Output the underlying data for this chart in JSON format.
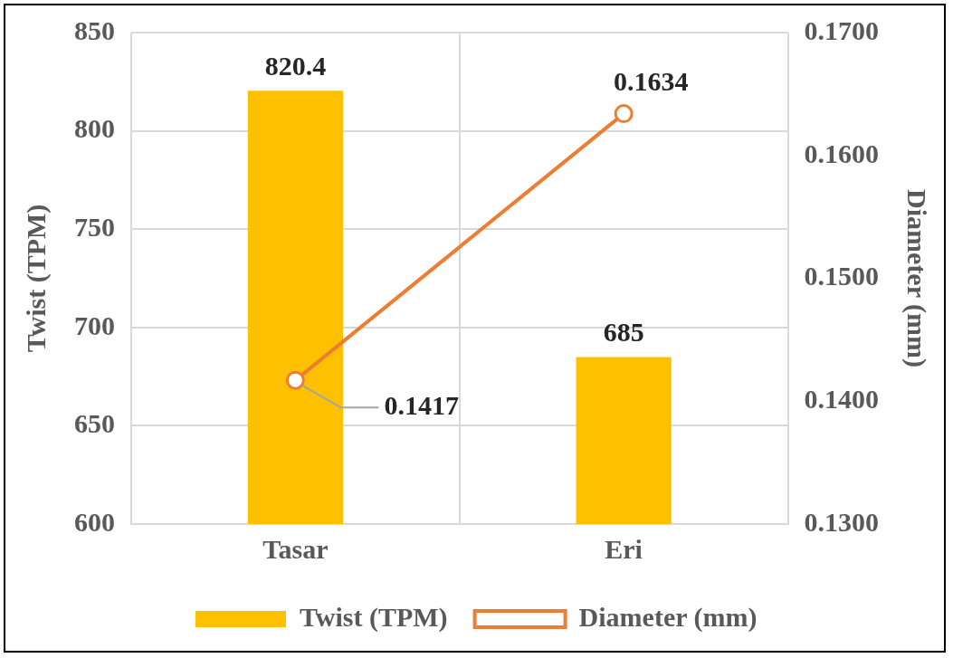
{
  "chart_data": {
    "type": "bar",
    "categories": [
      "Tasar",
      "Eri"
    ],
    "ylabel": "Twist (TPM)",
    "y2label": "Diameter (mm)",
    "series": [
      {
        "name": "Twist (TPM)",
        "color": "#ffc000",
        "values": [
          820.4,
          685
        ]
      },
      {
        "name": "Diameter (mm)",
        "type": "line",
        "axis": "y2",
        "color": "#ed7d31",
        "values": [
          0.1417,
          0.1634
        ]
      }
    ],
    "ylim": [
      600,
      850
    ],
    "yticks": [
      600,
      650,
      700,
      750,
      800,
      850
    ],
    "y2lim": [
      0.13,
      0.17
    ],
    "y2ticks": [
      {
        "value": 0.13,
        "label": "0.1300"
      },
      {
        "value": 0.14,
        "label": "0.1400"
      },
      {
        "value": 0.15,
        "label": "0.1500"
      },
      {
        "value": 0.16,
        "label": "0.1600"
      },
      {
        "value": 0.17,
        "label": "0.1700"
      }
    ],
    "data_labels": true,
    "grid": true,
    "legend": "bottom",
    "marker": "circle",
    "line_style": "solid"
  }
}
